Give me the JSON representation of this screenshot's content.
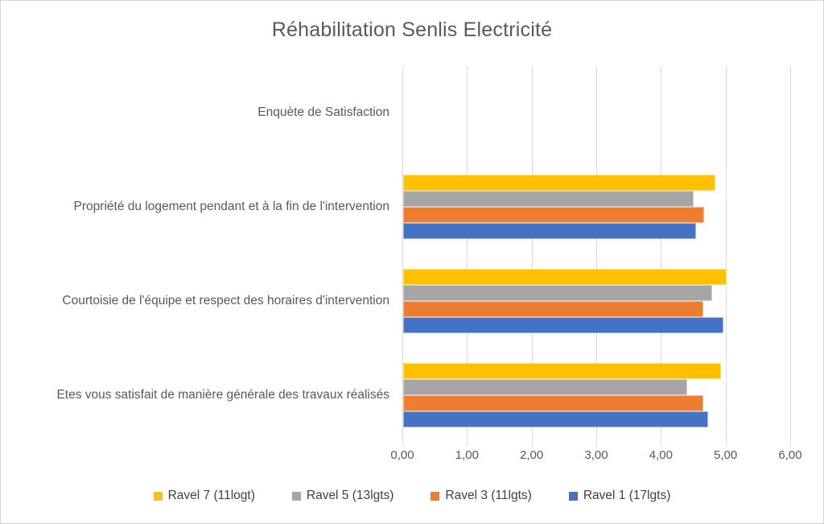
{
  "window": {
    "background": "#ffffff",
    "frame_border_color": "#d6d6d6"
  },
  "chart_data": {
    "type": "bar",
    "orientation": "horizontal",
    "title": "Réhabilitation Senlis Electricité",
    "title_color": "#595959",
    "categories": [
      "Enquète de Satisfaction",
      "Propriété du logement pendant et à la fin de l'intervention",
      "Courtoisie de l'équipe et respect des horaires d'intervention",
      "Etes vous satisfait de manière générale des travaux réalisés"
    ],
    "series": [
      {
        "name": "Ravel 7 (11logt)",
        "color": "#FFC000",
        "values": [
          0,
          4.83,
          5.0,
          4.92
        ]
      },
      {
        "name": "Ravel 5 (13lgts)",
        "color": "#A5A5A5",
        "values": [
          0,
          4.49,
          4.78,
          4.4
        ]
      },
      {
        "name": "Ravel 3 (11lgts)",
        "color": "#ED7D31",
        "values": [
          0,
          4.65,
          4.64,
          4.64
        ]
      },
      {
        "name": "Ravel 1 (17lgts)",
        "color": "#4472C4",
        "values": [
          0,
          4.53,
          4.95,
          4.72
        ]
      }
    ],
    "xlim": [
      0,
      6
    ],
    "x_ticks": [
      "0,00",
      "1,00",
      "2,00",
      "3,00",
      "4,00",
      "5,00",
      "6,00"
    ],
    "grid": "vertical-only",
    "gridline_color": "#d9d9d9",
    "axis_label_color": "#595959",
    "legend_position": "bottom"
  }
}
